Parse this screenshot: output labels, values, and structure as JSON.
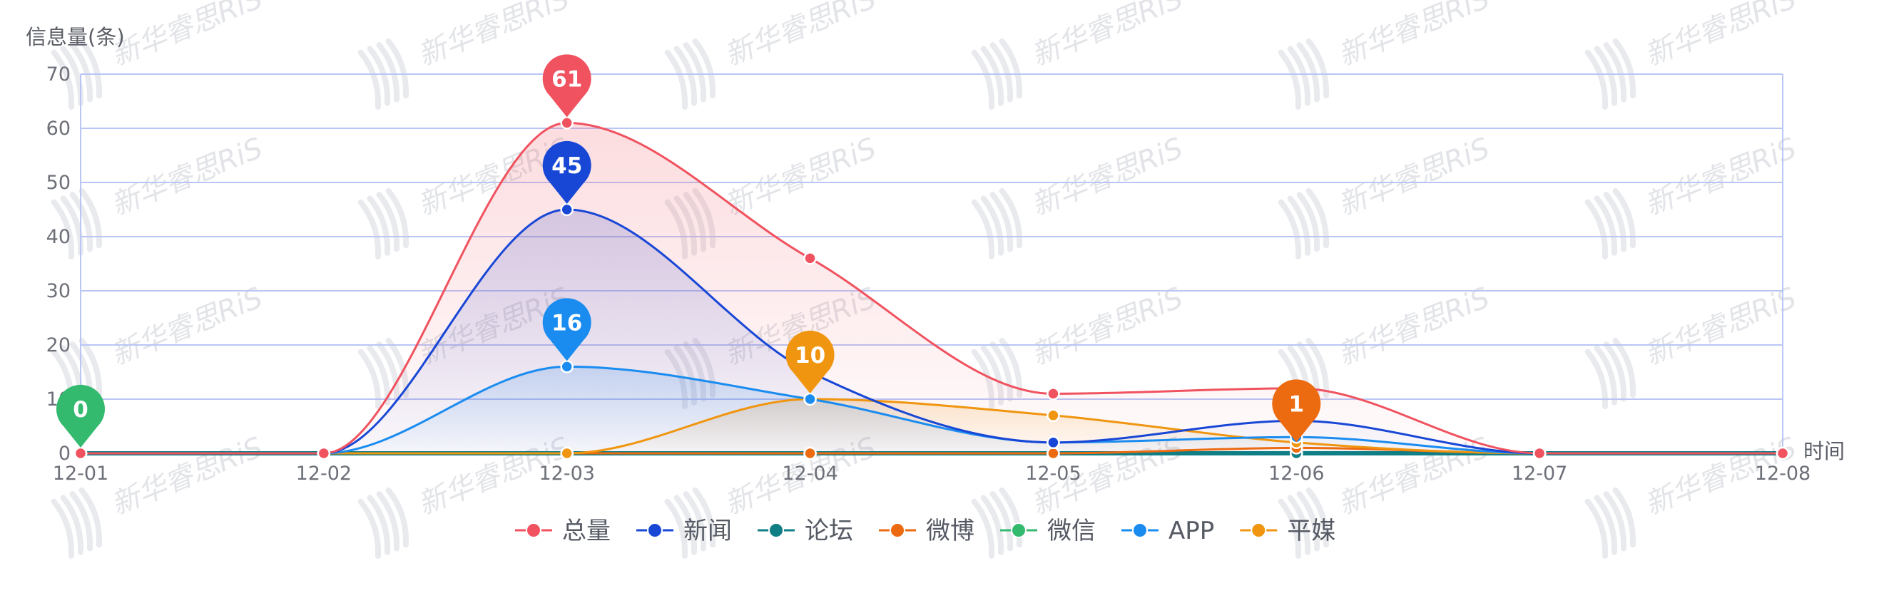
{
  "chart_data": {
    "type": "line",
    "title": "",
    "ylabel": "信息量(条)",
    "xlabel": "时间",
    "categories": [
      "12-01",
      "12-02",
      "12-03",
      "12-04",
      "12-05",
      "12-06",
      "12-07",
      "12-08"
    ],
    "ylim": [
      0,
      70
    ],
    "yticks": [
      0,
      10,
      20,
      30,
      40,
      50,
      60,
      70
    ],
    "grid": true,
    "smooth": true,
    "legend_position": "bottom",
    "series": [
      {
        "name": "总量",
        "color": "#f0525f",
        "area": true,
        "values": [
          0,
          0,
          61,
          36,
          11,
          12,
          0,
          0
        ]
      },
      {
        "name": "新闻",
        "color": "#1847d6",
        "area": true,
        "values": [
          0,
          0,
          45,
          15,
          2,
          6,
          0,
          0
        ]
      },
      {
        "name": "论坛",
        "color": "#0f7e85",
        "area": false,
        "values": [
          0,
          0,
          0,
          0,
          0,
          0,
          0,
          0
        ]
      },
      {
        "name": "微博",
        "color": "#ec6a10",
        "area": false,
        "values": [
          0,
          0,
          0,
          0,
          0,
          1,
          0,
          0
        ]
      },
      {
        "name": "微信",
        "color": "#34ba6f",
        "area": false,
        "values": [
          0,
          0,
          0,
          0,
          0,
          0,
          0,
          0
        ]
      },
      {
        "name": "APP",
        "color": "#1a8cf0",
        "area": true,
        "values": [
          0,
          0,
          16,
          10,
          2,
          3,
          0,
          0
        ]
      },
      {
        "name": "平媒",
        "color": "#f0950f",
        "area": true,
        "values": [
          0,
          0,
          0,
          10,
          7,
          2,
          0,
          0
        ]
      }
    ],
    "markers": [
      {
        "series": "总量",
        "index": 2,
        "label": "61"
      },
      {
        "series": "新闻",
        "index": 2,
        "label": "45"
      },
      {
        "series": "APP",
        "index": 2,
        "label": "16"
      },
      {
        "series": "平媒",
        "index": 3,
        "label": "10"
      },
      {
        "series": "微博",
        "index": 5,
        "label": "1"
      },
      {
        "series": "微信",
        "index": 0,
        "label": "0"
      }
    ]
  },
  "watermark": {
    "text": "新华睿思RiS"
  }
}
